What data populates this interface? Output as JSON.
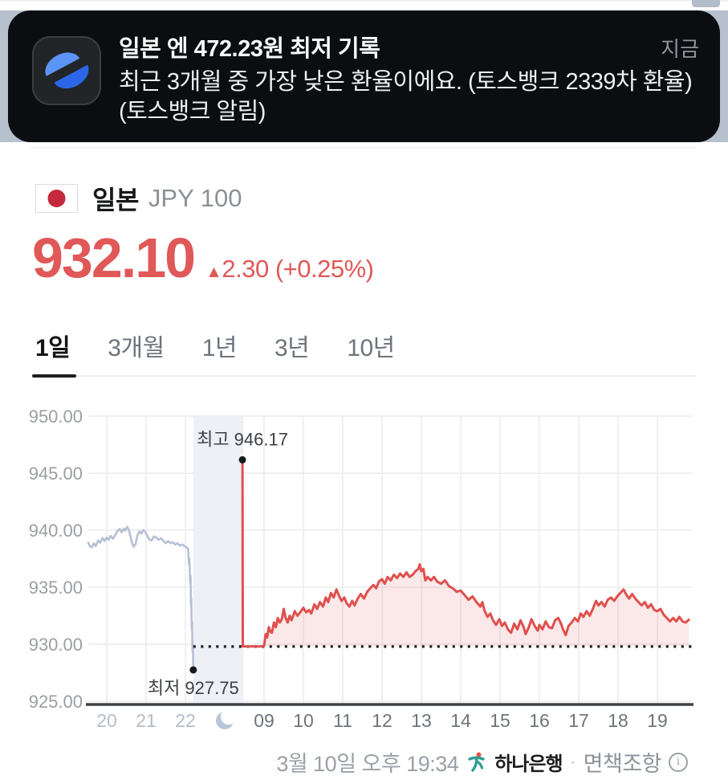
{
  "notification": {
    "app": "toss-bank",
    "title": "일본 엔 472.23원 최저 기록",
    "time": "지금",
    "body": "최근 3개월 중 가장 낮은 환율이에요. (토스뱅크 2339차 환율) (토스뱅크 알림)"
  },
  "currency": {
    "country": "일본",
    "code": "JPY 100",
    "price": "932.10",
    "change_arrow": "▲",
    "change_text": "2.30 (+0.25%)",
    "accent_color": "#e05858"
  },
  "tabs": {
    "items": [
      {
        "label": "1일",
        "active": true
      },
      {
        "label": "3개월",
        "active": false
      },
      {
        "label": "1년",
        "active": false
      },
      {
        "label": "3년",
        "active": false
      },
      {
        "label": "10년",
        "active": false
      }
    ]
  },
  "chart_data": {
    "type": "line",
    "title": "JPY 100 / KRW 1-day exchange rate",
    "y_ticks": [
      "950.00",
      "945.00",
      "940.00",
      "935.00",
      "930.00",
      "925.00"
    ],
    "y_range": [
      925,
      950
    ],
    "x_tick_labels": [
      "20",
      "21",
      "22",
      "moon",
      "09",
      "10",
      "11",
      "12",
      "13",
      "14",
      "15",
      "16",
      "17",
      "18",
      "19"
    ],
    "moon_slot": 3,
    "prev_session_slots": 3,
    "baseline_value": 929.8,
    "night_band_slots": [
      2.2,
      3.48
    ],
    "high_annotation": {
      "label": "최고 946.17",
      "value": 946.17,
      "slot": 3.45
    },
    "low_annotation": {
      "label": "최저 927.75",
      "value": 927.75,
      "slot": 2.2
    },
    "colors": {
      "grid": "#ececee",
      "axis": "#3f4246",
      "night_band": "#eef0f6",
      "dot": "#17181a",
      "baseline": "#1a1a1a",
      "prev_line": "#b6c0d6",
      "today_line": "#df504e",
      "today_fill": "rgba(223,80,78,0.13)",
      "moon": "#bcc6da"
    },
    "series": [
      {
        "name": "previous-session",
        "points": [
          [
            -0.47,
            938.9
          ],
          [
            -0.42,
            938.55
          ],
          [
            -0.38,
            938.5
          ],
          [
            -0.33,
            938.85
          ],
          [
            -0.28,
            938.6
          ],
          [
            -0.22,
            939.1
          ],
          [
            -0.17,
            938.9
          ],
          [
            -0.11,
            939.3
          ],
          [
            -0.06,
            939.05
          ],
          [
            0,
            939.35
          ],
          [
            0.05,
            939.15
          ],
          [
            0.1,
            939.5
          ],
          [
            0.16,
            939.25
          ],
          [
            0.22,
            939.6
          ],
          [
            0.28,
            939.95
          ],
          [
            0.33,
            940.1
          ],
          [
            0.38,
            939.8
          ],
          [
            0.43,
            940.15
          ],
          [
            0.47,
            939.95
          ],
          [
            0.52,
            940.3
          ],
          [
            0.56,
            940.05
          ],
          [
            0.6,
            939.5
          ],
          [
            0.64,
            938.9
          ],
          [
            0.68,
            938.55
          ],
          [
            0.73,
            938.75
          ],
          [
            0.78,
            939.55
          ],
          [
            0.83,
            939.9
          ],
          [
            0.88,
            939.7
          ],
          [
            0.93,
            940.0
          ],
          [
            0.98,
            939.85
          ],
          [
            1.03,
            939.5
          ],
          [
            1.08,
            939.2
          ],
          [
            1.14,
            939.1
          ],
          [
            1.2,
            939.45
          ],
          [
            1.26,
            939.35
          ],
          [
            1.32,
            939.15
          ],
          [
            1.38,
            939.3
          ],
          [
            1.44,
            939.05
          ],
          [
            1.5,
            938.85
          ],
          [
            1.56,
            939.05
          ],
          [
            1.62,
            938.85
          ],
          [
            1.68,
            938.95
          ],
          [
            1.74,
            938.75
          ],
          [
            1.8,
            938.85
          ],
          [
            1.86,
            938.65
          ],
          [
            1.92,
            938.75
          ],
          [
            1.98,
            938.6
          ],
          [
            2.03,
            938.5
          ],
          [
            2.07,
            938.35
          ],
          [
            2.09,
            937.0
          ],
          [
            2.1,
            937.5
          ],
          [
            2.12,
            935.4
          ],
          [
            2.13,
            936.0
          ],
          [
            2.14,
            933.4
          ],
          [
            2.15,
            934.1
          ],
          [
            2.16,
            931.4
          ],
          [
            2.17,
            932.0
          ],
          [
            2.18,
            929.4
          ],
          [
            2.19,
            930.0
          ],
          [
            2.2,
            927.75
          ]
        ]
      },
      {
        "name": "today",
        "fill_to_baseline": true,
        "points": [
          [
            3.45,
            946.17
          ],
          [
            3.46,
            929.8
          ],
          [
            3.6,
            929.8
          ],
          [
            3.75,
            929.82
          ],
          [
            3.9,
            929.8
          ],
          [
            4.0,
            929.85
          ],
          [
            4.04,
            930.9
          ],
          [
            4.08,
            930.6
          ],
          [
            4.12,
            931.5
          ],
          [
            4.16,
            931.1
          ],
          [
            4.2,
            931.0
          ],
          [
            4.25,
            931.9
          ],
          [
            4.3,
            931.5
          ],
          [
            4.35,
            932.3
          ],
          [
            4.4,
            931.9
          ],
          [
            4.45,
            932.2
          ],
          [
            4.5,
            933.1
          ],
          [
            4.55,
            932.3
          ],
          [
            4.6,
            931.9
          ],
          [
            4.65,
            932.5
          ],
          [
            4.7,
            932.1
          ],
          [
            4.78,
            932.9
          ],
          [
            4.85,
            932.5
          ],
          [
            4.92,
            932.8
          ],
          [
            5.0,
            933.2
          ],
          [
            5.07,
            932.8
          ],
          [
            5.14,
            933.0
          ],
          [
            5.2,
            932.7
          ],
          [
            5.28,
            933.5
          ],
          [
            5.35,
            933.1
          ],
          [
            5.42,
            933.7
          ],
          [
            5.5,
            933.3
          ],
          [
            5.57,
            934.1
          ],
          [
            5.63,
            933.7
          ],
          [
            5.7,
            934.5
          ],
          [
            5.77,
            934.1
          ],
          [
            5.84,
            934.8
          ],
          [
            5.9,
            934.3
          ],
          [
            5.97,
            933.8
          ],
          [
            6.04,
            934.1
          ],
          [
            6.1,
            933.6
          ],
          [
            6.17,
            933.3
          ],
          [
            6.24,
            933.8
          ],
          [
            6.3,
            933.4
          ],
          [
            6.38,
            934.0
          ],
          [
            6.46,
            934.4
          ],
          [
            6.54,
            934.0
          ],
          [
            6.62,
            934.6
          ],
          [
            6.7,
            934.9
          ],
          [
            6.78,
            935.2
          ],
          [
            6.85,
            934.9
          ],
          [
            6.92,
            935.5
          ],
          [
            7.0,
            935.7
          ],
          [
            7.07,
            935.3
          ],
          [
            7.14,
            935.9
          ],
          [
            7.22,
            935.6
          ],
          [
            7.3,
            936.1
          ],
          [
            7.38,
            935.8
          ],
          [
            7.46,
            936.2
          ],
          [
            7.54,
            935.9
          ],
          [
            7.62,
            936.3
          ],
          [
            7.7,
            935.9
          ],
          [
            7.78,
            936.1
          ],
          [
            7.85,
            936.4
          ],
          [
            7.92,
            936.6
          ],
          [
            7.96,
            937.0
          ],
          [
            8.0,
            936.4
          ],
          [
            8.05,
            936.6
          ],
          [
            8.1,
            935.6
          ],
          [
            8.16,
            935.9
          ],
          [
            8.24,
            935.6
          ],
          [
            8.32,
            935.9
          ],
          [
            8.4,
            935.5
          ],
          [
            8.5,
            935.3
          ],
          [
            8.6,
            935.6
          ],
          [
            8.7,
            935.1
          ],
          [
            8.8,
            934.9
          ],
          [
            8.9,
            934.6
          ],
          [
            9.0,
            934.7
          ],
          [
            9.1,
            934.3
          ],
          [
            9.2,
            933.9
          ],
          [
            9.3,
            934.2
          ],
          [
            9.4,
            933.7
          ],
          [
            9.5,
            933.3
          ],
          [
            9.55,
            933.7
          ],
          [
            9.6,
            933.0
          ],
          [
            9.68,
            932.4
          ],
          [
            9.75,
            932.7
          ],
          [
            9.82,
            932.1
          ],
          [
            9.9,
            931.7
          ],
          [
            9.98,
            932.2
          ],
          [
            10.05,
            931.6
          ],
          [
            10.12,
            931.9
          ],
          [
            10.2,
            931.3
          ],
          [
            10.28,
            931.0
          ],
          [
            10.36,
            931.8
          ],
          [
            10.44,
            931.3
          ],
          [
            10.52,
            932.1
          ],
          [
            10.6,
            931.5
          ],
          [
            10.65,
            930.9
          ],
          [
            10.72,
            931.4
          ],
          [
            10.8,
            932.2
          ],
          [
            10.88,
            931.6
          ],
          [
            10.96,
            931.2
          ],
          [
            11.0,
            931.7
          ],
          [
            11.08,
            931.3
          ],
          [
            11.16,
            932.0
          ],
          [
            11.24,
            931.5
          ],
          [
            11.32,
            931.4
          ],
          [
            11.4,
            932.1
          ],
          [
            11.48,
            932.3
          ],
          [
            11.55,
            931.8
          ],
          [
            11.6,
            931.3
          ],
          [
            11.67,
            930.8
          ],
          [
            11.74,
            931.6
          ],
          [
            11.82,
            931.9
          ],
          [
            11.9,
            932.3
          ],
          [
            11.98,
            932.0
          ],
          [
            12.05,
            932.7
          ],
          [
            12.12,
            932.4
          ],
          [
            12.2,
            932.9
          ],
          [
            12.28,
            932.5
          ],
          [
            12.36,
            933.1
          ],
          [
            12.44,
            933.8
          ],
          [
            12.5,
            933.4
          ],
          [
            12.58,
            933.7
          ],
          [
            12.66,
            933.3
          ],
          [
            12.74,
            933.9
          ],
          [
            12.82,
            934.1
          ],
          [
            12.9,
            933.8
          ],
          [
            12.98,
            934.2
          ],
          [
            13.06,
            934.5
          ],
          [
            13.14,
            934.8
          ],
          [
            13.2,
            934.4
          ],
          [
            13.28,
            934.0
          ],
          [
            13.36,
            934.4
          ],
          [
            13.44,
            934.0
          ],
          [
            13.52,
            933.7
          ],
          [
            13.6,
            933.4
          ],
          [
            13.68,
            933.7
          ],
          [
            13.76,
            933.2
          ],
          [
            13.84,
            933.5
          ],
          [
            13.92,
            933.0
          ],
          [
            14.0,
            932.9
          ],
          [
            14.08,
            933.1
          ],
          [
            14.16,
            932.6
          ],
          [
            14.24,
            932.3
          ],
          [
            14.32,
            932.0
          ],
          [
            14.4,
            932.3
          ],
          [
            14.48,
            932.0
          ],
          [
            14.56,
            932.4
          ],
          [
            14.64,
            932.0
          ],
          [
            14.72,
            931.9
          ],
          [
            14.8,
            932.15
          ]
        ]
      }
    ]
  },
  "footer": {
    "timestamp": "3월 10일 오후 19:34",
    "bank": "하나은행",
    "dot": "·",
    "disclaimer": "면책조항",
    "info": "i"
  }
}
